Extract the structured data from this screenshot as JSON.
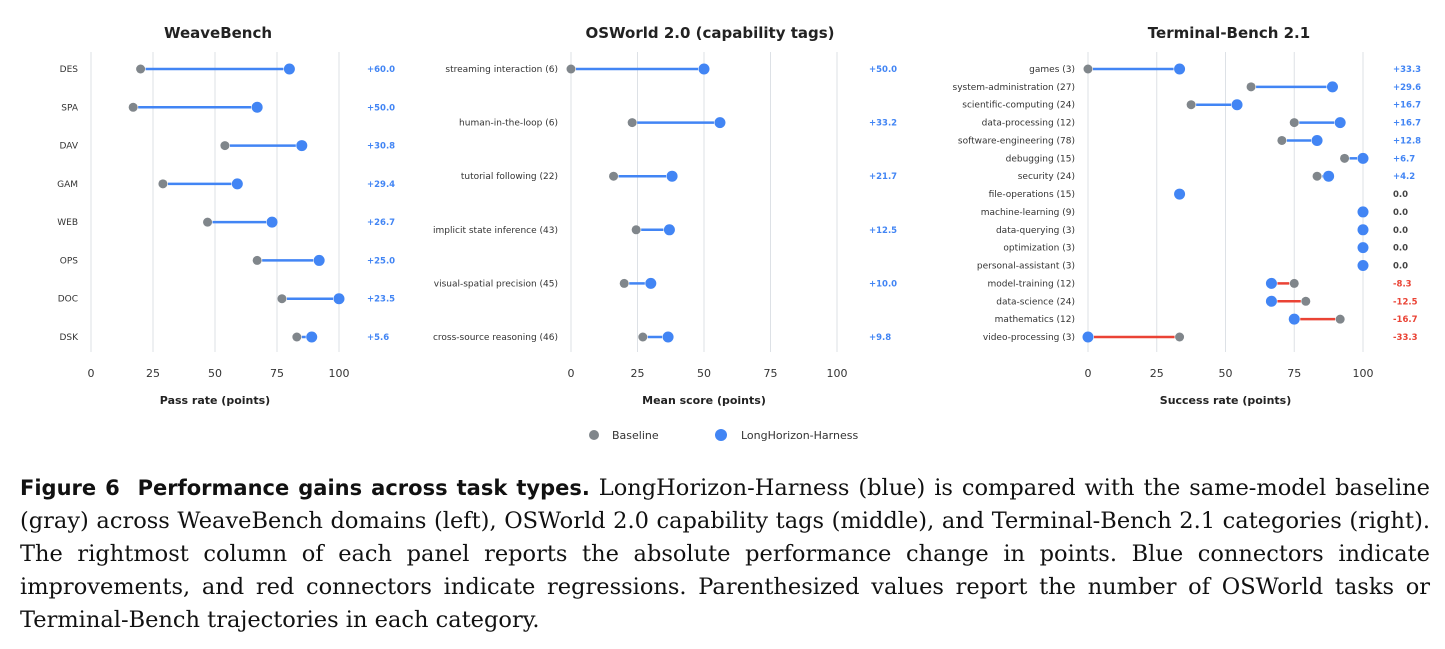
{
  "colors": {
    "baseline": "#80868b",
    "harness": "#4285f4",
    "improvement": "#4285f4",
    "regression": "#ea4335",
    "grid": "#dde1e6"
  },
  "legend": {
    "baseline": "Baseline",
    "harness": "LongHorizon-Harness"
  },
  "chart_data": [
    {
      "type": "dumbbell",
      "title": "WeaveBench",
      "xlabel": "Pass rate (points)",
      "xlim": [
        0,
        100
      ],
      "xticks": [
        "0",
        "25",
        "50",
        "75",
        "100"
      ],
      "grid": "vertical",
      "categories": [
        "DES",
        "SPA",
        "DAV",
        "GAM",
        "WEB",
        "OPS",
        "DOC",
        "DSK"
      ],
      "baseline": [
        20,
        17,
        54,
        29,
        47,
        67,
        77,
        83
      ],
      "harness": [
        80,
        67,
        85,
        59,
        73,
        92,
        100,
        89
      ],
      "delta": [
        "+60.0",
        "+50.0",
        "+30.8",
        "+29.4",
        "+26.7",
        "+25.0",
        "+23.5",
        "+5.6"
      ]
    },
    {
      "type": "dumbbell",
      "title": "OSWorld 2.0 (capability tags)",
      "xlabel": "Mean score (points)",
      "xlim": [
        0,
        100
      ],
      "xticks": [
        "0",
        "25",
        "50",
        "75",
        "100"
      ],
      "grid": "vertical",
      "categories": [
        "streaming interaction (6)",
        "human-in-the-loop (6)",
        "tutorial following (22)",
        "implicit state inference (43)",
        "visual-spatial precision (45)",
        "cross-source reasoning (46)"
      ],
      "baseline": [
        0,
        23,
        16,
        24.5,
        20,
        27
      ],
      "harness": [
        50,
        56,
        38,
        37,
        30,
        36.5
      ],
      "delta": [
        "+50.0",
        "+33.2",
        "+21.7",
        "+12.5",
        "+10.0",
        "+9.8"
      ]
    },
    {
      "type": "dumbbell",
      "title": "Terminal-Bench 2.1",
      "xlabel": "Success rate (points)",
      "xlim": [
        0,
        100
      ],
      "xticks": [
        "0",
        "25",
        "50",
        "75",
        "100"
      ],
      "grid": "vertical",
      "categories": [
        "games (3)",
        "system-administration (27)",
        "scientific-computing (24)",
        "data-processing (12)",
        "software-engineering (78)",
        "debugging (15)",
        "security (24)",
        "file-operations (15)",
        "machine-learning (9)",
        "data-querying (3)",
        "optimization (3)",
        "personal-assistant (3)",
        "model-training (12)",
        "data-science (24)",
        "mathematics (12)",
        "video-processing (3)"
      ],
      "baseline": [
        0,
        59.3,
        37.5,
        75,
        70.5,
        93.3,
        83.3,
        33.3,
        100,
        100,
        100,
        100,
        75,
        79.2,
        91.7,
        33.3
      ],
      "harness": [
        33.3,
        88.9,
        54.2,
        91.7,
        83.3,
        100,
        87.5,
        33.3,
        100,
        100,
        100,
        100,
        66.7,
        66.7,
        75,
        0
      ],
      "delta": [
        "+33.3",
        "+29.6",
        "+16.7",
        "+16.7",
        "+12.8",
        "+6.7",
        "+4.2",
        "0.0",
        "0.0",
        "0.0",
        "0.0",
        "0.0",
        "-8.3",
        "-12.5",
        "-16.7",
        "-33.3"
      ]
    }
  ],
  "caption": {
    "fig_no": "Figure 6",
    "title": "Performance gains across task types.",
    "body": "LongHorizon-Harness (blue) is compared with the same-model baseline (gray) across WeaveBench domains (left), OSWorld 2.0 capability tags (middle), and Terminal-Bench 2.1 categories (right). The rightmost column of each panel reports the absolute performance change in points. Blue connectors indicate improvements, and red connectors indicate regressions. Parenthesized values report the number of OSWorld tasks or Terminal-Bench trajectories in each category."
  }
}
